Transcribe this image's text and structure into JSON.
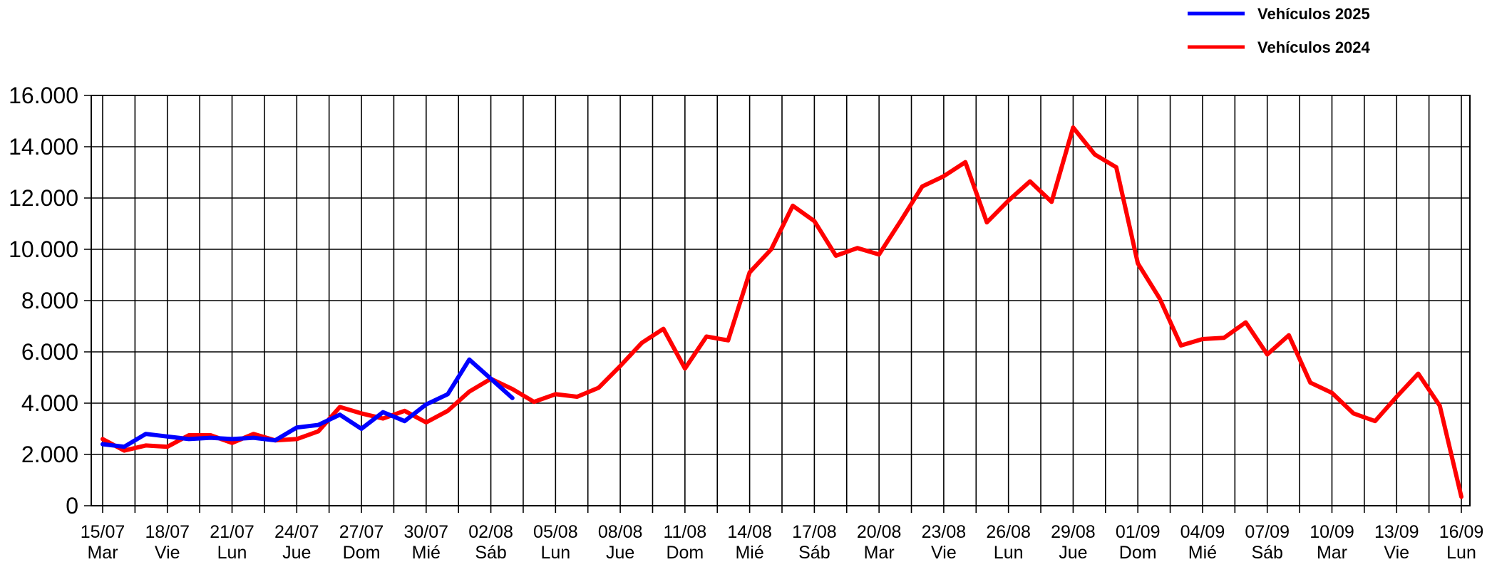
{
  "chart_data": {
    "type": "line",
    "ylim": [
      0,
      16000
    ],
    "y_ticks": [
      "0",
      "2.000",
      "4.000",
      "6.000",
      "8.000",
      "10.000",
      "12.000",
      "14.000",
      "16.000"
    ],
    "x_ticks": [
      {
        "date": "15/07",
        "day": "Mar"
      },
      {
        "date": "18/07",
        "day": "Vie"
      },
      {
        "date": "21/07",
        "day": "Lun"
      },
      {
        "date": "24/07",
        "day": "Jue"
      },
      {
        "date": "27/07",
        "day": "Dom"
      },
      {
        "date": "30/07",
        "day": "Mié"
      },
      {
        "date": "02/08",
        "day": "Sáb"
      },
      {
        "date": "05/08",
        "day": "Lun"
      },
      {
        "date": "08/08",
        "day": "Jue"
      },
      {
        "date": "11/08",
        "day": "Dom"
      },
      {
        "date": "14/08",
        "day": "Mié"
      },
      {
        "date": "17/08",
        "day": "Sáb"
      },
      {
        "date": "20/08",
        "day": "Mar"
      },
      {
        "date": "23/08",
        "day": "Vie"
      },
      {
        "date": "26/08",
        "day": "Lun"
      },
      {
        "date": "29/08",
        "day": "Jue"
      },
      {
        "date": "01/09",
        "day": "Dom"
      },
      {
        "date": "04/09",
        "day": "Mié"
      },
      {
        "date": "07/09",
        "day": "Sáb"
      },
      {
        "date": "10/09",
        "day": "Mar"
      },
      {
        "date": "13/09",
        "day": "Vie"
      },
      {
        "date": "16/09",
        "day": "Lun"
      }
    ],
    "grid": true,
    "legend_position": "top-right",
    "series": [
      {
        "name": "Vehículos 2025",
        "color": "#0000ff",
        "values": [
          2400,
          2300,
          2800,
          2700,
          2600,
          2650,
          2600,
          2650,
          2550,
          3050,
          3150,
          3550,
          3000,
          3650,
          3300,
          3950,
          4350,
          5700,
          4950,
          4200
        ]
      },
      {
        "name": "Vehículos 2024",
        "color": "#ff0000",
        "values": [
          2600,
          2150,
          2350,
          2300,
          2750,
          2750,
          2450,
          2800,
          2550,
          2600,
          2900,
          3850,
          3600,
          3400,
          3700,
          3250,
          3700,
          4450,
          4950,
          4550,
          4050,
          4350,
          4250,
          4600,
          5450,
          6350,
          6900,
          5350,
          6600,
          6450,
          9100,
          10000,
          11700,
          11100,
          9750,
          10050,
          9800,
          11100,
          12450,
          12850,
          13400,
          11050,
          11900,
          12650,
          11850,
          14750,
          13700,
          13200,
          9450,
          8100,
          6250,
          6500,
          6550,
          7150,
          5900,
          6650,
          4800,
          4400,
          3600,
          3300,
          4250,
          5150,
          3900,
          350
        ]
      }
    ]
  }
}
